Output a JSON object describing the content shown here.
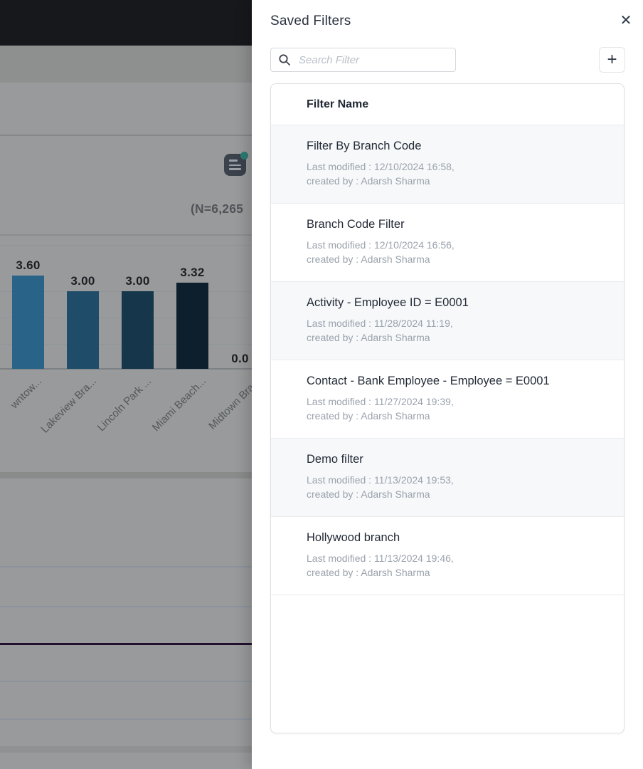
{
  "panel": {
    "title": "Saved Filters",
    "icons": {
      "close": "✕",
      "search": "magnifier-icon",
      "add": "+"
    },
    "search_placeholder": "Search Filter",
    "list_header": "Filter Name",
    "filters": [
      {
        "name": "Filter By Branch Code",
        "modified": "Last modified : 12/10/2024 16:58,",
        "created": "created by : Adarsh Sharma"
      },
      {
        "name": "Branch Code Filter",
        "modified": "Last modified : 12/10/2024 16:56,",
        "created": "created by : Adarsh Sharma"
      },
      {
        "name": "Activity - Employee ID = E0001",
        "modified": "Last modified : 11/28/2024 11:19,",
        "created": "created by : Adarsh Sharma"
      },
      {
        "name": "Contact - Bank Employee - Employee = E0001",
        "modified": "Last modified : 11/27/2024 19:39,",
        "created": "created by : Adarsh Sharma"
      },
      {
        "name": "Demo filter",
        "modified": "Last modified : 11/13/2024 19:53,",
        "created": "created by : Adarsh Sharma"
      },
      {
        "name": "Hollywood branch",
        "modified": "Last modified : 11/13/2024 19:46,",
        "created": "created by : Adarsh Sharma"
      }
    ]
  },
  "background": {
    "menu_icon": "list-menu-icon",
    "menu_badge_color": "#2d7a73"
  },
  "chart_data": {
    "type": "bar",
    "categories": [
      "wntow...",
      "Lakeview Bra...",
      "Lincoln Park ...",
      "Miami Beach...",
      "Midtown Bra..."
    ],
    "values": [
      3.6,
      3.0,
      3.0,
      3.32,
      0.0
    ],
    "data_labels": [
      "3.60",
      "3.00",
      "3.00",
      "3.32",
      "0.0"
    ],
    "bar_colors": [
      "#2a6388",
      "#1f4d69",
      "#16364b",
      "#0d1e2c",
      "#0d1e2c"
    ],
    "annotation": "(N=6,265",
    "ylim": [
      0,
      4
    ],
    "xlabel": "",
    "ylabel": "",
    "grid": "horizontal",
    "legend": "none"
  }
}
